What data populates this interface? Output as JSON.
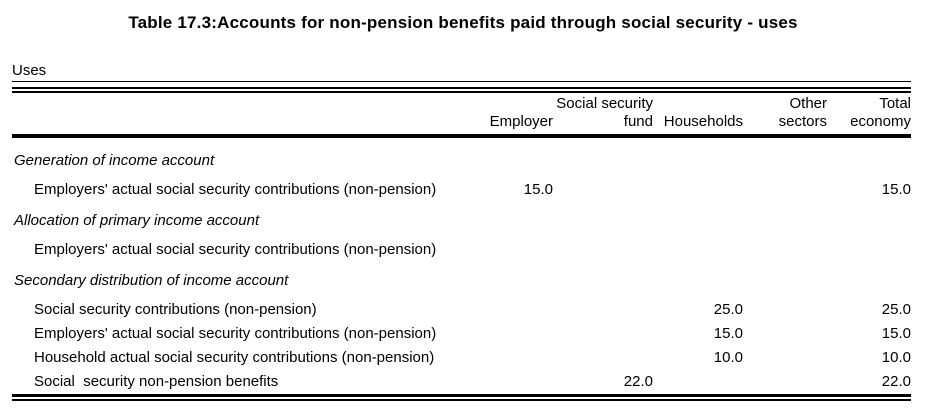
{
  "title": "Table 17.3:Accounts for non-pension benefits paid through social security - uses",
  "table": {
    "caption": "Uses",
    "columns": [
      {
        "key": "employer",
        "line1": "",
        "line2": "Employer"
      },
      {
        "key": "social-security-fund",
        "line1": "Social security",
        "line2": "fund"
      },
      {
        "key": "households",
        "line1": "",
        "line2": "Households"
      },
      {
        "key": "other-sectors",
        "line1": "Other",
        "line2": "sectors"
      },
      {
        "key": "total-economy",
        "line1": "Total",
        "line2": "economy"
      }
    ],
    "rows": [
      {
        "type": "section",
        "label": "Generation of income account",
        "values": [
          "",
          "",
          "",
          "",
          ""
        ]
      },
      {
        "type": "item",
        "label": "Employers' actual social security contributions (non-pension)",
        "values": [
          "15.0",
          "",
          "",
          "",
          "15.0"
        ]
      },
      {
        "type": "section",
        "label": "Allocation of primary income account",
        "values": [
          "",
          "",
          "",
          "",
          ""
        ]
      },
      {
        "type": "item",
        "label": "Employers' actual social security contributions (non-pension)",
        "values": [
          "",
          "",
          "",
          "",
          ""
        ]
      },
      {
        "type": "section",
        "label": "Secondary distribution of income account",
        "values": [
          "",
          "",
          "",
          "",
          ""
        ]
      },
      {
        "type": "item",
        "label": "Social security contributions (non-pension)",
        "values": [
          "",
          "",
          "25.0",
          "",
          "25.0"
        ]
      },
      {
        "type": "item",
        "label": "Employers' actual social security contributions (non-pension)",
        "values": [
          "",
          "",
          "15.0",
          "",
          "15.0"
        ]
      },
      {
        "type": "item",
        "label": "Household actual social security contributions (non-pension)",
        "values": [
          "",
          "",
          "10.0",
          "",
          "10.0"
        ]
      },
      {
        "type": "item",
        "label": "Social  security non-pension benefits",
        "values": [
          "",
          "22.0",
          "",
          "",
          "22.0"
        ]
      }
    ]
  }
}
